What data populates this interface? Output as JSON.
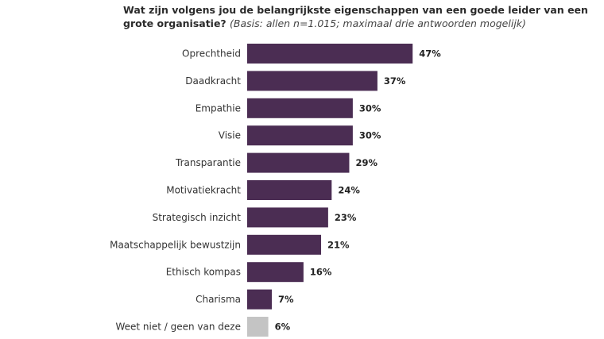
{
  "chart_data": {
    "type": "bar",
    "orientation": "horizontal",
    "title": "Wat zijn volgens jou de belangrijkste eigenschappen van een goede leider van een grote organisatie?",
    "subtitle": "(Basis: allen n=1.015; maximaal drie antwoorden mogelijk)",
    "categories": [
      "Oprechtheid",
      "Daadkracht",
      "Empathie",
      "Visie",
      "Transparantie",
      "Motivatiekracht",
      "Strategisch inzicht",
      "Maatschappelijk bewustzijn",
      "Ethisch kompas",
      "Charisma",
      "Weet niet / geen van deze"
    ],
    "values": [
      47,
      37,
      30,
      30,
      29,
      24,
      23,
      21,
      16,
      7,
      6
    ],
    "value_labels": [
      "47%",
      "37%",
      "30%",
      "30%",
      "29%",
      "24%",
      "23%",
      "21%",
      "16%",
      "7%",
      "6%"
    ],
    "unit": "%",
    "xlim": [
      0,
      50
    ],
    "grid": false,
    "colors": {
      "bar": "#4b2d53",
      "bar_other": "#c4c4c4"
    }
  }
}
